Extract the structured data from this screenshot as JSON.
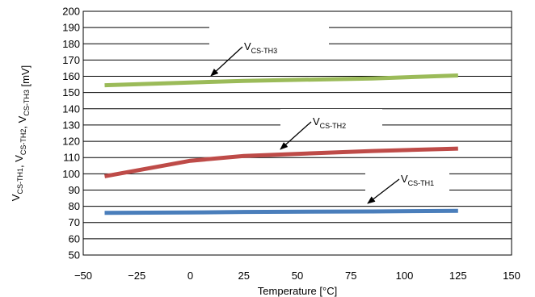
{
  "chart_data": {
    "type": "line",
    "xlabel": "Temperature [°C]",
    "ylabel": {
      "parts": [
        {
          "main": "V",
          "sub": "CS-TH1"
        },
        {
          "main": ", V",
          "sub": "CS-TH2"
        },
        {
          "main": ", V",
          "sub": "CS-TH3"
        },
        {
          "main": "  [mV]",
          "sub": ""
        }
      ]
    },
    "xlim": [
      -50,
      150
    ],
    "ylim": [
      50,
      200
    ],
    "x_ticks": [
      -50,
      -25,
      0,
      25,
      50,
      75,
      100,
      125,
      150
    ],
    "x_tick_labels": [
      "−50",
      "−25",
      "0",
      "25",
      "50",
      "75",
      "100",
      "125",
      "150"
    ],
    "y_ticks": [
      50,
      60,
      70,
      80,
      90,
      100,
      110,
      120,
      130,
      140,
      150,
      160,
      170,
      180,
      190,
      200
    ],
    "y_tick_labels": [
      "50",
      "60",
      "70",
      "80",
      "90",
      "100",
      "110",
      "120",
      "130",
      "140",
      "150",
      "160",
      "170",
      "180",
      "190",
      "200"
    ],
    "grid": "horizontal",
    "legend": "none",
    "series": [
      {
        "label_main": "V",
        "label_sub": "CS-TH1",
        "color": "#4a7ebb",
        "x": [
          -40,
          0,
          25,
          85,
          125
        ],
        "y": [
          76.0,
          76.2,
          76.5,
          76.8,
          77.2
        ]
      },
      {
        "label_main": "V",
        "label_sub": "CS-TH2",
        "color": "#be4b48",
        "x": [
          -40,
          0,
          25,
          85,
          125
        ],
        "y": [
          98.5,
          108.0,
          111.0,
          114.0,
          115.5
        ]
      },
      {
        "label_main": "V",
        "label_sub": "CS-TH3",
        "color": "#9bbb59",
        "x": [
          -40,
          0,
          25,
          85,
          125
        ],
        "y": [
          154.5,
          156.2,
          157.2,
          158.7,
          160.5
        ]
      }
    ]
  }
}
